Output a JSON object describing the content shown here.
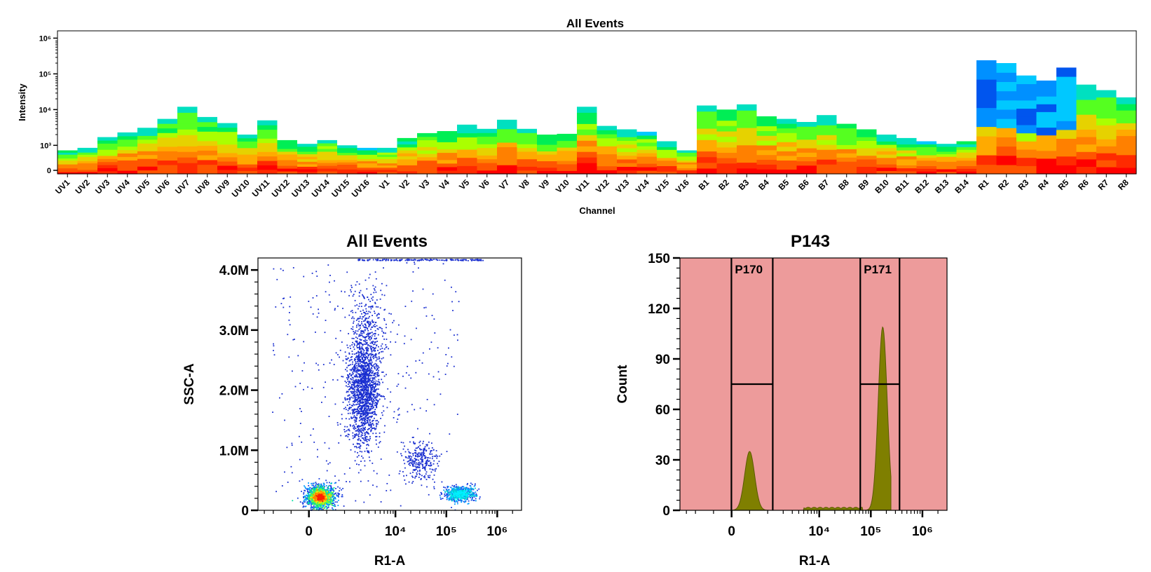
{
  "chart_data": [
    {
      "type": "heatmap",
      "title": "All Events",
      "xlabel": "Channel",
      "ylabel": "Intensity",
      "y_ticks": [
        "0",
        "10³",
        "10⁴",
        "10⁵",
        "10⁶"
      ],
      "y_scale": "biexponential",
      "categories": [
        "UV1",
        "UV2",
        "UV3",
        "UV4",
        "UV5",
        "UV6",
        "UV7",
        "UV8",
        "UV9",
        "UV10",
        "UV11",
        "UV12",
        "UV13",
        "UV14",
        "UV15",
        "UV16",
        "V1",
        "V2",
        "V3",
        "V4",
        "V5",
        "V6",
        "V7",
        "V8",
        "V9",
        "V10",
        "V11",
        "V12",
        "V13",
        "V14",
        "V15",
        "V16",
        "B1",
        "B2",
        "B3",
        "B4",
        "B5",
        "B6",
        "B7",
        "B8",
        "B9",
        "B10",
        "B11",
        "B12",
        "B13",
        "B14",
        "R1",
        "R2",
        "R3",
        "R4",
        "R5",
        "R6",
        "R7",
        "R8"
      ],
      "max_intensity": [
        800,
        900,
        1700,
        2300,
        3100,
        5500,
        12000,
        6200,
        4200,
        2000,
        5000,
        1400,
        1100,
        1400,
        1000,
        900,
        900,
        1600,
        2200,
        2500,
        3800,
        2900,
        5200,
        2900,
        2000,
        2100,
        12000,
        3500,
        2800,
        2400,
        1300,
        800,
        13000,
        10000,
        14000,
        6500,
        5500,
        4500,
        7000,
        4000,
        2800,
        2000,
        1600,
        1300,
        1100,
        1300,
        240000,
        200000,
        90000,
        65000,
        150000,
        50000,
        35000,
        22000
      ],
      "grid": false
    },
    {
      "type": "scatter",
      "title": "All Events",
      "xlabel": "R1-A",
      "ylabel": "SSC-A",
      "x_ticks": [
        "0",
        "10⁴",
        "10⁵",
        "10⁶"
      ],
      "y_ticks": [
        "0",
        "1.0M",
        "2.0M",
        "3.0M",
        "4.0M"
      ],
      "ylim": [
        0,
        4200000
      ],
      "clusters": [
        {
          "x_center": 300,
          "y_center": 200000,
          "density": "high"
        },
        {
          "x_center": 2500,
          "y_center": 2000000,
          "density": "medium"
        },
        {
          "x_center": 30000,
          "y_center": 850000,
          "density": "low"
        },
        {
          "x_center": 180000,
          "y_center": 280000,
          "density": "high"
        }
      ]
    },
    {
      "type": "area",
      "title": "P143",
      "xlabel": "R1-A",
      "ylabel": "Count",
      "x_ticks": [
        "0",
        "10⁴",
        "10⁵",
        "10⁶"
      ],
      "y_ticks": [
        "0",
        "30",
        "60",
        "90",
        "120",
        "150"
      ],
      "ylim": [
        0,
        150
      ],
      "peaks": [
        {
          "x": 500,
          "count": 35
        },
        {
          "x": 170000,
          "count": 109
        }
      ],
      "gates": [
        {
          "name": "P170",
          "x_range": [
            "-1500",
            "3000"
          ],
          "bar_level": 75
        },
        {
          "name": "P171",
          "x_range": [
            "70000",
            "300000"
          ],
          "bar_level": 75
        }
      ],
      "fill_color": "#7f7f00",
      "background_color": "#ed9b9b"
    }
  ]
}
